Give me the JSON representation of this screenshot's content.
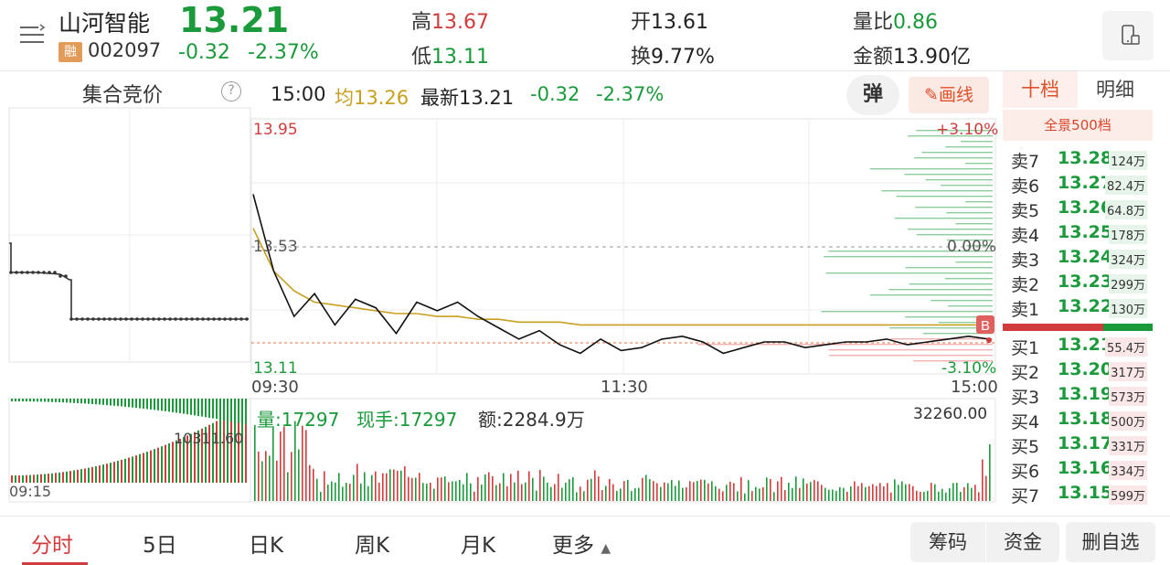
{
  "header": {
    "stock_name": "山河智能",
    "rong_badge": "融",
    "code": "002097",
    "price": "13.21",
    "change": "-0.32",
    "change_pct": "-2.37%",
    "high_label": "高",
    "high_value": "13.67",
    "low_label": "低",
    "low_value": "13.11",
    "open_label": "开",
    "open_value": "13.61",
    "turnover_label": "换",
    "turnover_value": "9.77%",
    "vol_ratio_label": "量比",
    "vol_ratio_value": "0.86",
    "amount_label": "金额",
    "amount_value": "13.90亿"
  },
  "auction": {
    "title": "集合竞价",
    "help": "?",
    "volume_label": "10311.60",
    "time_label": "09:15"
  },
  "infobar": {
    "time": "15:00",
    "avg_label": "均",
    "avg_value": "13.26",
    "latest_label": "最新",
    "latest_value": "13.21",
    "change": "-0.32",
    "change_pct": "-2.37%",
    "tan_label": "弹",
    "draw_label": "画线"
  },
  "chart": {
    "price_high": "13.95",
    "price_mid": "13.53",
    "price_low": "13.11",
    "pct_high": "+3.10%",
    "pct_mid": "0.00%",
    "pct_low": "-3.10%",
    "time_start": "09:30",
    "time_mid": "11:30",
    "time_end": "15:00",
    "b_marker": "B",
    "vol_info_label": "量:17297",
    "vol_now_label": "现手:17297",
    "vol_amount_label": "额:2284.9万",
    "vol_max": "32260.00"
  },
  "chart_data": {
    "type": "line",
    "title": "",
    "x_labels": [
      "09:30",
      "11:30",
      "15:00"
    ],
    "ylim": [
      13.11,
      13.95
    ],
    "prev_close": 13.53,
    "series": [
      {
        "name": "最新",
        "values": [
          13.72,
          13.45,
          13.29,
          13.37,
          13.26,
          13.35,
          13.32,
          13.23,
          13.34,
          13.31,
          13.34,
          13.29,
          13.25,
          13.21,
          13.24,
          13.19,
          13.16,
          13.21,
          13.17,
          13.18,
          13.21,
          13.22,
          13.2,
          13.16,
          13.18,
          13.2,
          13.2,
          13.18,
          13.19,
          13.2,
          13.2,
          13.21,
          13.19,
          13.2,
          13.21,
          13.22,
          13.21
        ]
      },
      {
        "name": "均",
        "values": [
          13.6,
          13.45,
          13.38,
          13.34,
          13.33,
          13.32,
          13.31,
          13.3,
          13.3,
          13.29,
          13.29,
          13.28,
          13.28,
          13.27,
          13.27,
          13.27,
          13.26,
          13.26,
          13.26,
          13.26,
          13.26,
          13.26,
          13.26,
          13.26,
          13.26,
          13.26,
          13.26,
          13.26,
          13.26,
          13.26,
          13.26,
          13.26,
          13.26,
          13.26,
          13.26,
          13.26,
          13.26
        ]
      }
    ]
  },
  "orderbook": {
    "tab_active": "十档",
    "tab_other": "明细",
    "quanjing": "全景500档",
    "sells": [
      {
        "label": "卖7",
        "price": "13.28",
        "vol": "124万"
      },
      {
        "label": "卖6",
        "price": "13.27",
        "vol": "82.4万"
      },
      {
        "label": "卖5",
        "price": "13.26",
        "vol": "64.8万"
      },
      {
        "label": "卖4",
        "price": "13.25",
        "vol": "178万"
      },
      {
        "label": "卖3",
        "price": "13.24",
        "vol": "324万"
      },
      {
        "label": "卖2",
        "price": "13.23",
        "vol": "299万"
      },
      {
        "label": "卖1",
        "price": "13.22",
        "vol": "130万"
      }
    ],
    "buys": [
      {
        "label": "买1",
        "price": "13.21",
        "vol": "55.4万"
      },
      {
        "label": "买2",
        "price": "13.20",
        "vol": "317万"
      },
      {
        "label": "买3",
        "price": "13.19",
        "vol": "573万"
      },
      {
        "label": "买4",
        "price": "13.18",
        "vol": "500万"
      },
      {
        "label": "买5",
        "price": "13.17",
        "vol": "331万"
      },
      {
        "label": "买6",
        "price": "13.16",
        "vol": "334万"
      },
      {
        "label": "买7",
        "price": "13.15",
        "vol": "599万"
      }
    ]
  },
  "bottom": {
    "tabs": [
      "分时",
      "5日",
      "日K",
      "周K",
      "月K",
      "更多"
    ],
    "chouma": "筹码",
    "zijin": "资金",
    "del_fav": "删自选"
  },
  "colors": {
    "up": "#d23b3b",
    "down": "#1a9a3a",
    "avg": "#c8a020"
  }
}
